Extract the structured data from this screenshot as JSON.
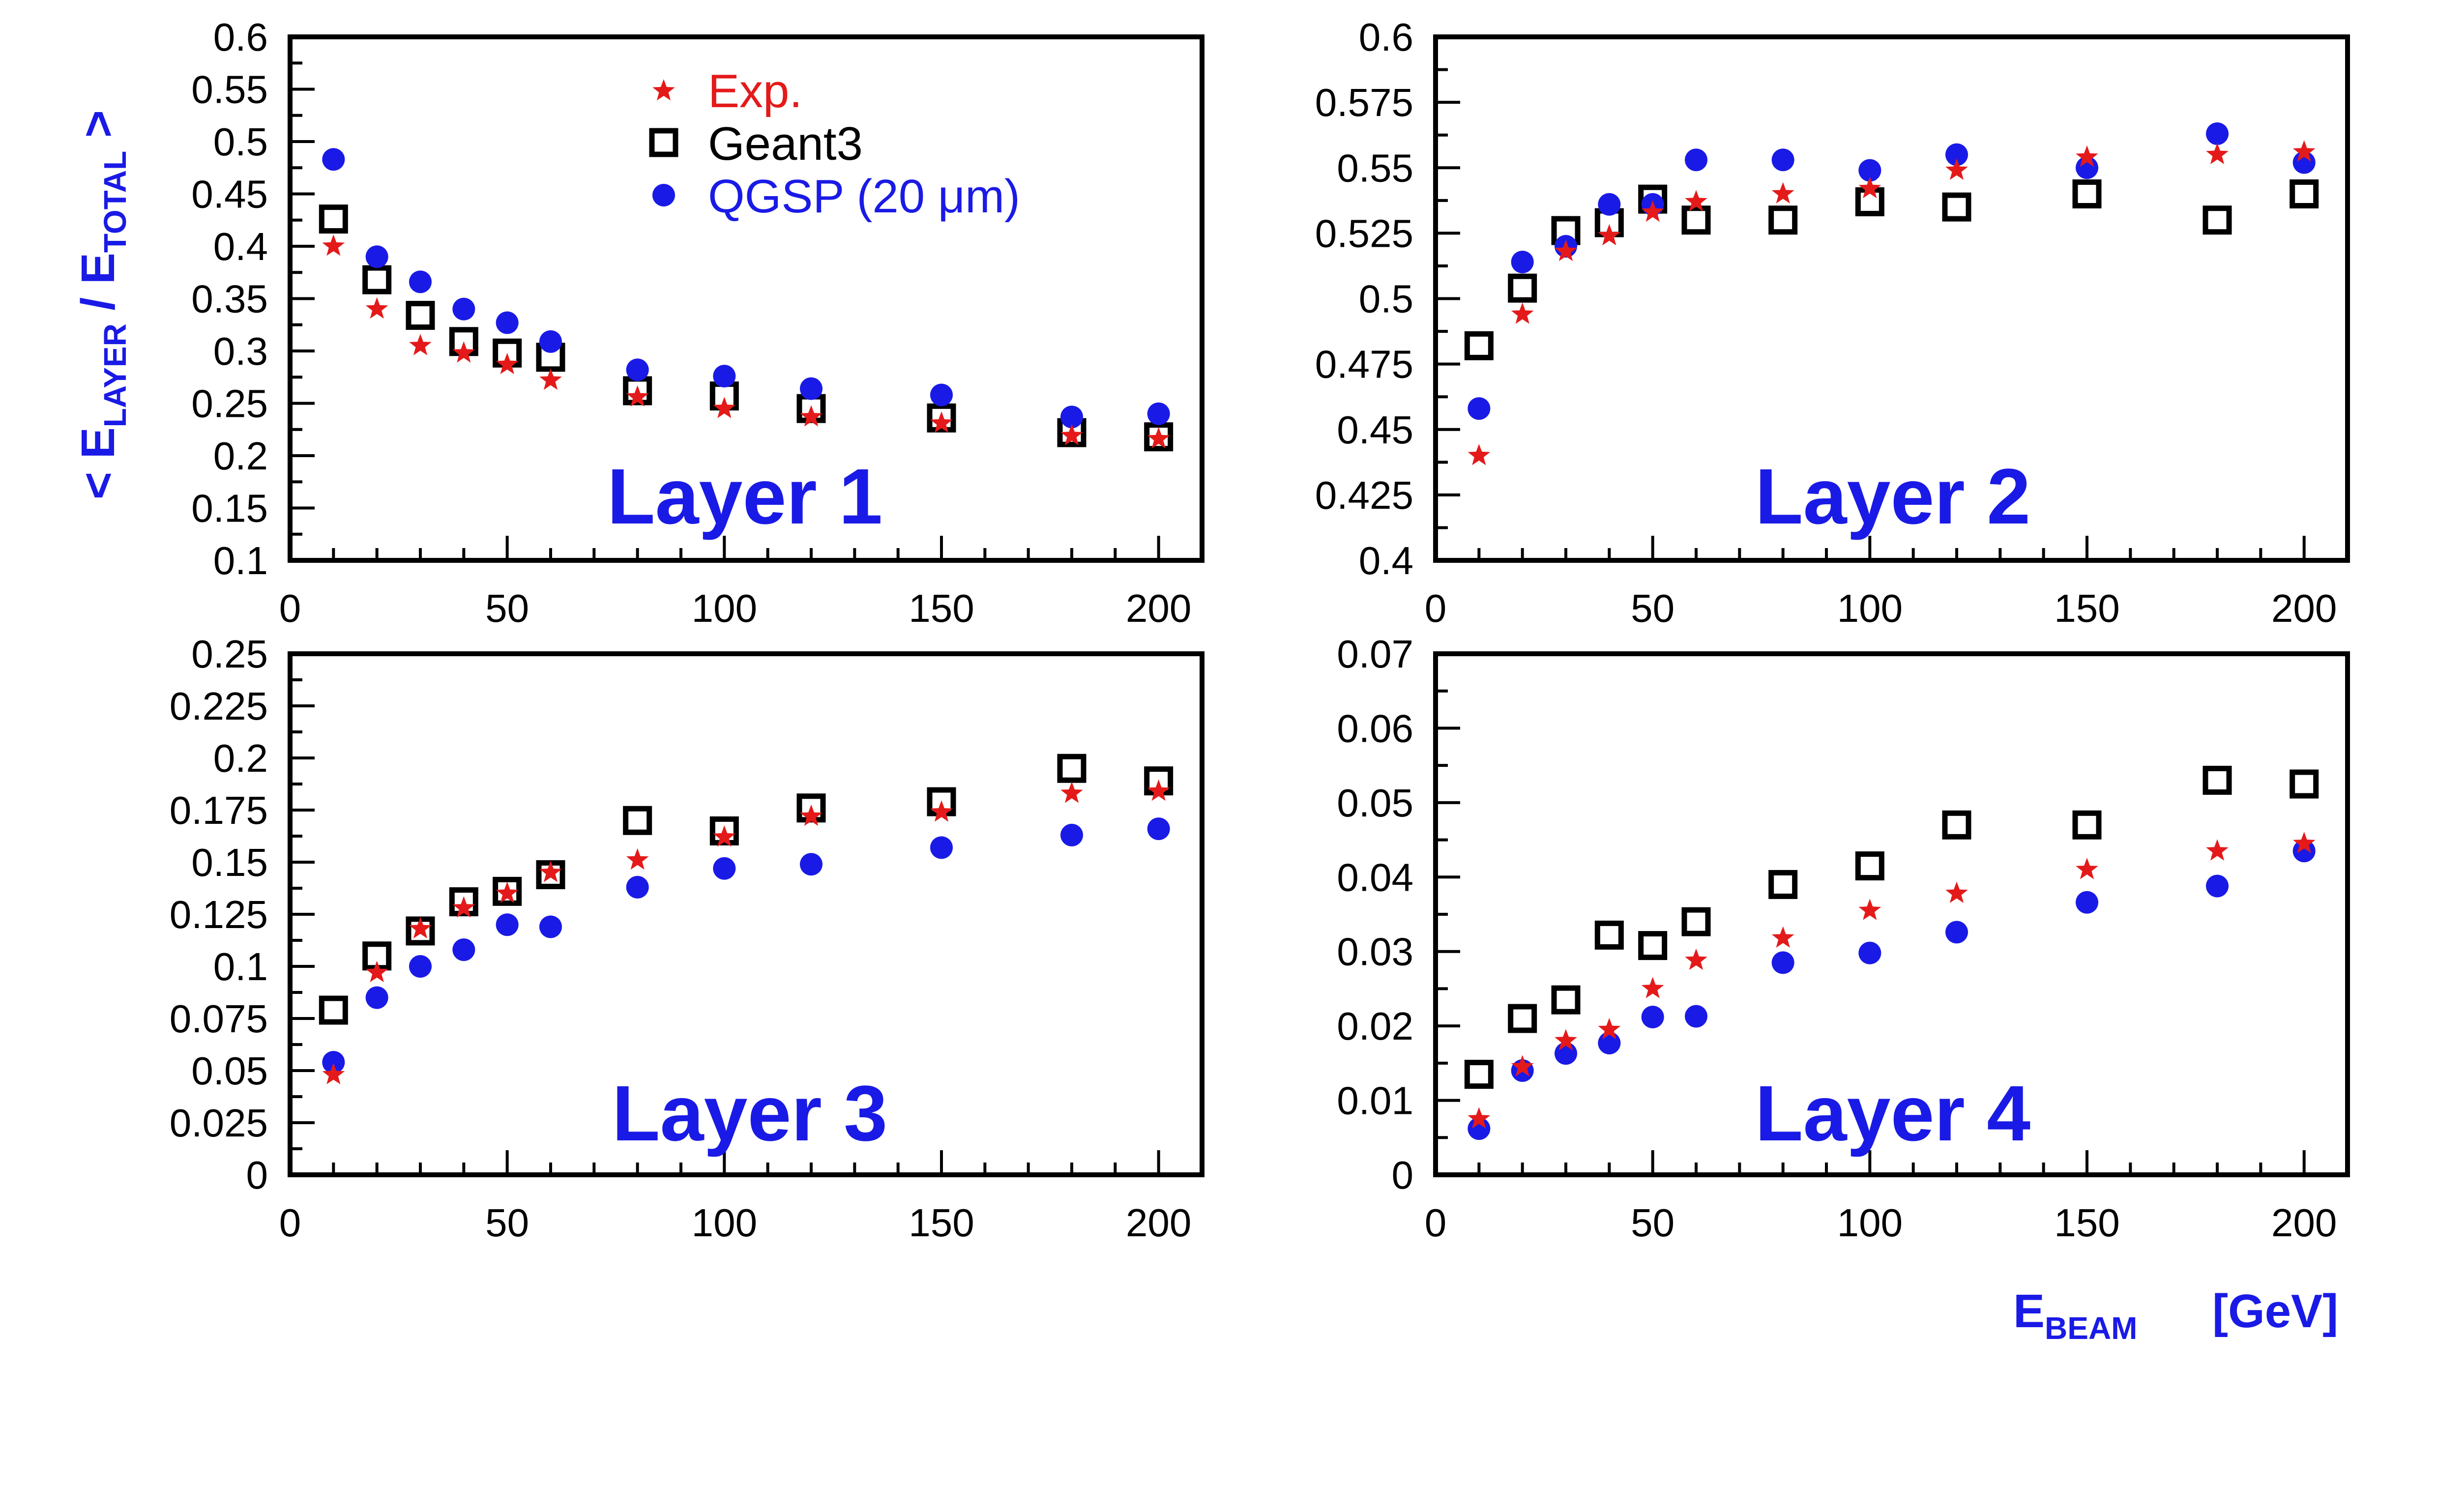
{
  "legend": {
    "exp_label": "Exp.",
    "geant3_label": "Geant3",
    "qgsp_label": "QGSP (20 μm)"
  },
  "axes": {
    "y_title_main": "< E",
    "y_title_sub1": "LAYER",
    "y_title_mid": " / E",
    "y_title_sub2": "TOTAL",
    "y_title_end": " >",
    "x_title_main": "E",
    "x_title_sub": "BEAM",
    "x_title_unit": "[GeV]"
  },
  "colors": {
    "exp": "#e41a1a",
    "geant3": "#000000",
    "qgsp": "#1a1ae6",
    "title": "#1a1ae6"
  },
  "chart_data": [
    {
      "type": "scatter",
      "title": "Layer 1",
      "xlim": [
        0,
        210
      ],
      "ylim": [
        0.1,
        0.6
      ],
      "xticks": [
        0,
        50,
        100,
        150,
        200
      ],
      "yticks": [
        0.1,
        0.15,
        0.2,
        0.25,
        0.3,
        0.35,
        0.4,
        0.45,
        0.5,
        0.55,
        0.6
      ],
      "ytick_labels": [
        "0.1",
        "0.15",
        "0.2",
        "0.25",
        "0.3",
        "0.35",
        "0.4",
        "0.45",
        "0.5",
        "0.55",
        "0.6"
      ],
      "x": [
        10,
        20,
        30,
        40,
        50,
        60,
        80,
        100,
        120,
        150,
        180,
        200
      ],
      "series": [
        {
          "name": "Exp.",
          "marker": "star",
          "values": [
            0.4,
            0.34,
            0.305,
            0.298,
            0.287,
            0.272,
            0.256,
            0.245,
            0.237,
            0.231,
            0.219,
            0.216
          ]
        },
        {
          "name": "Geant3",
          "marker": "square",
          "values": [
            0.426,
            0.368,
            0.334,
            0.309,
            0.298,
            0.294,
            0.262,
            0.257,
            0.245,
            0.236,
            0.222,
            0.218
          ]
        },
        {
          "name": "QGSP (20 μm)",
          "marker": "circle",
          "values": [
            0.483,
            0.39,
            0.366,
            0.34,
            0.327,
            0.309,
            0.282,
            0.276,
            0.264,
            0.258,
            0.237,
            0.24
          ]
        }
      ]
    },
    {
      "type": "scatter",
      "title": "Layer 2",
      "xlim": [
        0,
        210
      ],
      "ylim": [
        0.4,
        0.6
      ],
      "xticks": [
        0,
        50,
        100,
        150,
        200
      ],
      "yticks": [
        0.4,
        0.425,
        0.45,
        0.475,
        0.5,
        0.525,
        0.55,
        0.575,
        0.6
      ],
      "ytick_labels": [
        "0.4",
        "0.425",
        "0.45",
        "0.475",
        "0.5",
        "0.525",
        "0.55",
        "0.575",
        "0.6"
      ],
      "x": [
        10,
        20,
        30,
        40,
        50,
        60,
        80,
        100,
        120,
        150,
        180,
        200
      ],
      "series": [
        {
          "name": "Exp.",
          "marker": "star",
          "values": [
            0.44,
            0.494,
            0.518,
            0.524,
            0.533,
            0.537,
            0.54,
            0.542,
            0.549,
            0.554,
            0.555,
            0.556
          ]
        },
        {
          "name": "Geant3",
          "marker": "square",
          "values": [
            0.482,
            0.504,
            0.526,
            0.529,
            0.538,
            0.53,
            0.53,
            0.537,
            0.535,
            0.54,
            0.53,
            0.54
          ]
        },
        {
          "name": "QGSP (20 μm)",
          "marker": "circle",
          "values": [
            0.458,
            0.514,
            0.52,
            0.536,
            0.536,
            0.553,
            0.553,
            0.549,
            0.555,
            0.55,
            0.563,
            0.552
          ]
        }
      ]
    },
    {
      "type": "scatter",
      "title": "Layer 3",
      "xlim": [
        0,
        210
      ],
      "ylim": [
        0,
        0.25
      ],
      "xticks": [
        0,
        50,
        100,
        150,
        200
      ],
      "yticks": [
        0,
        0.025,
        0.05,
        0.075,
        0.1,
        0.125,
        0.15,
        0.175,
        0.2,
        0.225,
        0.25
      ],
      "ytick_labels": [
        "0",
        "0.025",
        "0.05",
        "0.075",
        "0.1",
        "0.125",
        "0.15",
        "0.175",
        "0.2",
        "0.225",
        "0.25"
      ],
      "x": [
        10,
        20,
        30,
        40,
        50,
        60,
        80,
        100,
        120,
        150,
        180,
        200
      ],
      "series": [
        {
          "name": "Exp.",
          "marker": "star",
          "values": [
            0.048,
            0.097,
            0.118,
            0.128,
            0.135,
            0.145,
            0.151,
            0.162,
            0.172,
            0.174,
            0.183,
            0.184
          ]
        },
        {
          "name": "Geant3",
          "marker": "square",
          "values": [
            0.079,
            0.105,
            0.117,
            0.131,
            0.136,
            0.144,
            0.17,
            0.165,
            0.176,
            0.179,
            0.195,
            0.189
          ]
        },
        {
          "name": "QGSP (20 μm)",
          "marker": "circle",
          "values": [
            0.054,
            0.085,
            0.1,
            0.108,
            0.12,
            0.119,
            0.138,
            0.147,
            0.149,
            0.157,
            0.163,
            0.166
          ]
        }
      ]
    },
    {
      "type": "scatter",
      "title": "Layer 4",
      "xlim": [
        0,
        210
      ],
      "ylim": [
        0,
        0.07
      ],
      "xticks": [
        0,
        50,
        100,
        150,
        200
      ],
      "yticks": [
        0,
        0.01,
        0.02,
        0.03,
        0.04,
        0.05,
        0.06,
        0.07
      ],
      "ytick_labels": [
        "0",
        "0.01",
        "0.02",
        "0.03",
        "0.04",
        "0.05",
        "0.06",
        "0.07"
      ],
      "x": [
        10,
        20,
        30,
        40,
        50,
        60,
        80,
        100,
        120,
        150,
        180,
        200
      ],
      "series": [
        {
          "name": "Exp.",
          "marker": "star",
          "values": [
            0.0075,
            0.0145,
            0.018,
            0.0195,
            0.025,
            0.0288,
            0.0318,
            0.0355,
            0.0378,
            0.041,
            0.0435,
            0.0445
          ]
        },
        {
          "name": "Geant3",
          "marker": "square",
          "values": [
            0.0135,
            0.021,
            0.0235,
            0.0322,
            0.0308,
            0.034,
            0.039,
            0.0415,
            0.047,
            0.047,
            0.053,
            0.0525
          ]
        },
        {
          "name": "QGSP (20 μm)",
          "marker": "circle",
          "values": [
            0.0062,
            0.014,
            0.0163,
            0.0177,
            0.0212,
            0.0213,
            0.0285,
            0.0298,
            0.0326,
            0.0366,
            0.0388,
            0.0435
          ]
        }
      ]
    }
  ]
}
